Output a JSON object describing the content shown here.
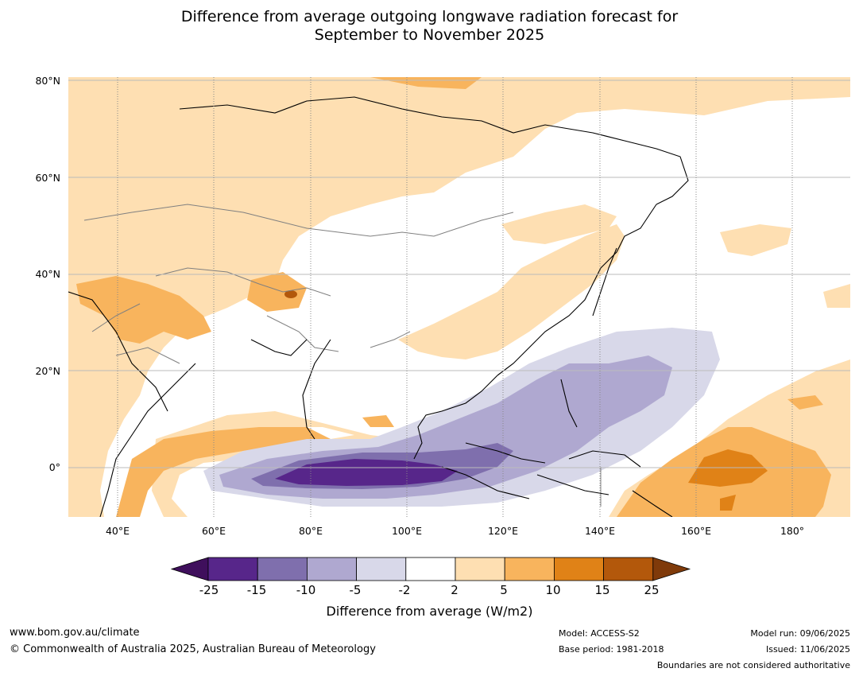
{
  "title": {
    "line1": "Difference from average outgoing longwave radiation forecast for",
    "line2": "September to November 2025"
  },
  "map": {
    "lat_labels": [
      "80°N",
      "60°N",
      "40°N",
      "20°N",
      "0°"
    ],
    "lon_labels": [
      "40°E",
      "60°E",
      "80°E",
      "100°E",
      "120°E",
      "140°E",
      "160°E",
      "180°"
    ],
    "colors": {
      "ocean": "#ffffff",
      "coast": "#000000",
      "borders": "#808080",
      "grid_dotted": "#888888",
      "grid_lat": "#bbbbbb"
    }
  },
  "colorbar": {
    "ticks": [
      "-25",
      "-15",
      "-10",
      "-5",
      "-2",
      "2",
      "5",
      "10",
      "15",
      "25"
    ],
    "title": "Difference from average (W/m2)",
    "colors": [
      "#3f0f5c",
      "#57268a",
      "#7f6fad",
      "#afa8d0",
      "#d8d8e9",
      "#ffffff",
      "#fedfb2",
      "#f8b45d",
      "#e08217",
      "#b3580b",
      "#7f3a0a"
    ]
  },
  "footer": {
    "url": "www.bom.gov.au/climate",
    "copyright": "© Commonwealth of Australia 2025, Australian Bureau of Meteorology",
    "model": "Model: ACCESS-S2",
    "base_period": "Base period: 1981-2018",
    "model_run": "Model run: 09/06/2025",
    "issued": "Issued: 11/06/2025",
    "boundaries": "Boundaries are not considered authoritative"
  }
}
